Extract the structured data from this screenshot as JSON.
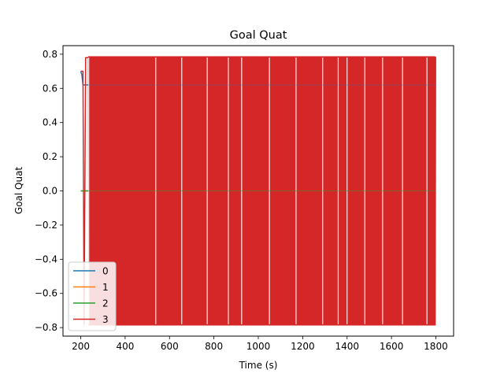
{
  "chart_data": {
    "type": "line",
    "title": "Goal Quat",
    "xlabel": "Time (s)",
    "ylabel": "Goal Quat",
    "xlim": [
      120,
      1880
    ],
    "ylim": [
      -0.85,
      0.85
    ],
    "xticks": [
      200,
      400,
      600,
      800,
      1000,
      1200,
      1400,
      1600,
      1800
    ],
    "yticks": [
      -0.8,
      -0.6,
      -0.4,
      -0.2,
      0.0,
      0.2,
      0.4,
      0.6,
      0.8
    ],
    "ytick_labels": [
      "−0.8",
      "−0.6",
      "−0.4",
      "−0.2",
      "0.0",
      "0.2",
      "0.4",
      "0.6",
      "0.8"
    ],
    "grid": false,
    "legend_position": "lower-left",
    "series": [
      {
        "name": "0",
        "color": "#1f77b4",
        "x": [
          200,
          205,
          210,
          215,
          220,
          225,
          1800
        ],
        "y": [
          0.7,
          0.68,
          0.62,
          0.62,
          0.62,
          0.62,
          0.62
        ]
      },
      {
        "name": "1",
        "color": "#ff7f0e",
        "x": [
          200,
          1800
        ],
        "y": [
          0.0,
          0.0
        ]
      },
      {
        "name": "2",
        "color": "#2ca02c",
        "x": [
          200,
          1800
        ],
        "y": [
          0.0,
          0.0
        ]
      },
      {
        "name": "3",
        "color": "#d62728",
        "x_start": 200,
        "x_end": 1800,
        "initial_x": [
          200,
          210,
          215,
          222,
          228,
          235
        ],
        "initial_y": [
          0.7,
          0.7,
          -0.78,
          0.78,
          0.78,
          0.78
        ],
        "oscillation_start": 235,
        "high": 0.785,
        "low": -0.785,
        "gap_x": [
          236,
          538,
          655,
          770,
          865,
          925,
          1050,
          1170,
          1290,
          1360,
          1400,
          1480,
          1560,
          1650,
          1760
        ]
      }
    ]
  }
}
